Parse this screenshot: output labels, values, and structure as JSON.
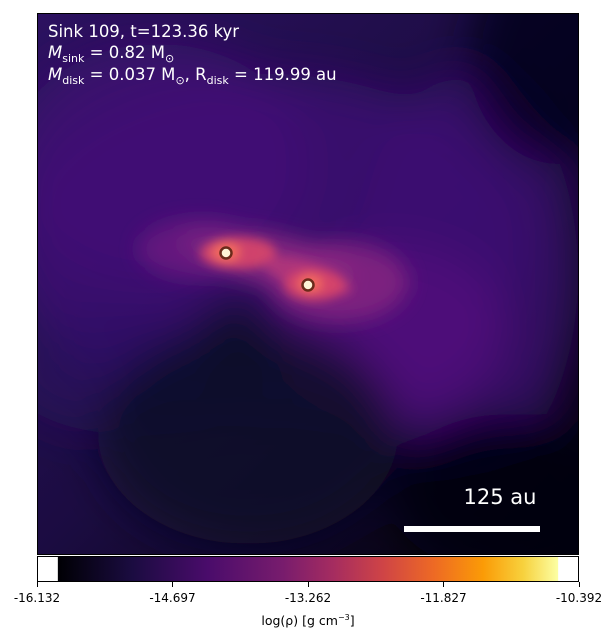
{
  "annotation": {
    "sink_line": "Sink 109, t=123.36 kyr",
    "msink_symbol": "M",
    "msink_sub": "sink",
    "msink_value": " = 0.82 M",
    "msink_unit_sub": "⊙",
    "mdisk_symbol": "M",
    "mdisk_sub": "disk",
    "mdisk_value": " = 0.037 M",
    "mdisk_unit_sub": "⊙",
    "rdisk_symbol": ", R",
    "rdisk_sub": "disk",
    "rdisk_value": " = 119.99 au"
  },
  "scalebar": {
    "label": "125 au"
  },
  "colorbar": {
    "colormap": "magma",
    "ticks": [
      "-16.132",
      "-14.697",
      "-13.262",
      "-11.827",
      "-10.392"
    ],
    "label_prefix": "log(ρ) [g cm",
    "label_exp": "−3",
    "label_suffix": "]"
  },
  "colors": {
    "background": "#000004",
    "sink_ring": "#6b2a1a",
    "sink_fill": "#fdf3d6"
  }
}
